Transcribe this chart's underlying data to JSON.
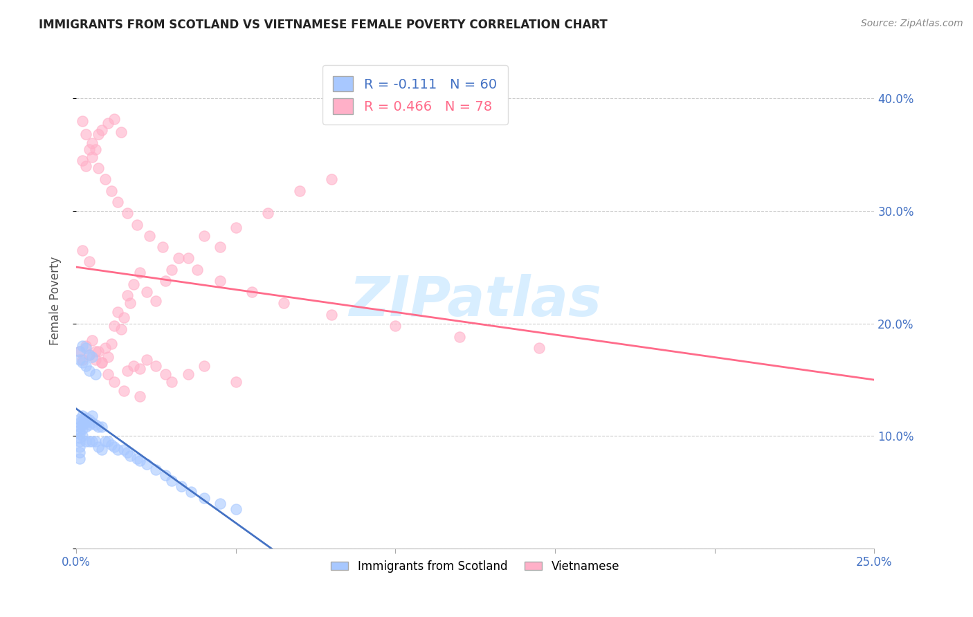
{
  "title": "IMMIGRANTS FROM SCOTLAND VS VIETNAMESE FEMALE POVERTY CORRELATION CHART",
  "source": "Source: ZipAtlas.com",
  "xlabel_scotland": "Immigrants from Scotland",
  "xlabel_vietnamese": "Vietnamese",
  "ylabel": "Female Poverty",
  "xlim": [
    0.0,
    0.25
  ],
  "ylim": [
    0.0,
    0.44
  ],
  "ytick_vals": [
    0.0,
    0.1,
    0.2,
    0.3,
    0.4
  ],
  "xtick_vals": [
    0.0,
    0.05,
    0.1,
    0.15,
    0.2,
    0.25
  ],
  "scotland_color": "#A8C8FF",
  "vietnamese_color": "#FFB0C8",
  "scotland_R": -0.111,
  "scotland_N": 60,
  "vietnamese_R": 0.466,
  "vietnamese_N": 78,
  "title_color": "#222222",
  "source_color": "#888888",
  "tick_color": "#4472C4",
  "grid_color": "#cccccc",
  "watermark_text": "ZIPatlas",
  "watermark_color": "#D8EEFF",
  "line_scotland_color": "#4472C4",
  "line_vietnamese_color": "#FF6B8A",
  "scotland_x": [
    0.001,
    0.001,
    0.001,
    0.001,
    0.001,
    0.001,
    0.001,
    0.001,
    0.001,
    0.001,
    0.002,
    0.002,
    0.002,
    0.002,
    0.002,
    0.003,
    0.003,
    0.003,
    0.003,
    0.004,
    0.004,
    0.004,
    0.005,
    0.005,
    0.005,
    0.006,
    0.006,
    0.007,
    0.007,
    0.008,
    0.008,
    0.009,
    0.01,
    0.011,
    0.012,
    0.013,
    0.015,
    0.016,
    0.017,
    0.019,
    0.02,
    0.022,
    0.025,
    0.028,
    0.03,
    0.033,
    0.036,
    0.04,
    0.045,
    0.05,
    0.001,
    0.001,
    0.002,
    0.002,
    0.003,
    0.003,
    0.004,
    0.004,
    0.005,
    0.006
  ],
  "scotland_y": [
    0.115,
    0.112,
    0.108,
    0.105,
    0.102,
    0.098,
    0.095,
    0.09,
    0.085,
    0.08,
    0.118,
    0.114,
    0.11,
    0.106,
    0.1,
    0.116,
    0.112,
    0.108,
    0.095,
    0.114,
    0.11,
    0.095,
    0.118,
    0.112,
    0.095,
    0.11,
    0.095,
    0.108,
    0.09,
    0.108,
    0.088,
    0.095,
    0.095,
    0.092,
    0.09,
    0.088,
    0.088,
    0.085,
    0.082,
    0.08,
    0.078,
    0.075,
    0.07,
    0.065,
    0.06,
    0.055,
    0.05,
    0.045,
    0.04,
    0.035,
    0.175,
    0.168,
    0.18,
    0.165,
    0.178,
    0.162,
    0.172,
    0.158,
    0.17,
    0.155
  ],
  "vietnamese_x": [
    0.001,
    0.002,
    0.003,
    0.004,
    0.005,
    0.006,
    0.007,
    0.008,
    0.009,
    0.01,
    0.011,
    0.012,
    0.013,
    0.014,
    0.015,
    0.016,
    0.017,
    0.018,
    0.02,
    0.022,
    0.025,
    0.028,
    0.03,
    0.035,
    0.04,
    0.045,
    0.05,
    0.06,
    0.07,
    0.08,
    0.002,
    0.003,
    0.004,
    0.005,
    0.006,
    0.007,
    0.008,
    0.01,
    0.012,
    0.014,
    0.016,
    0.018,
    0.02,
    0.022,
    0.025,
    0.028,
    0.03,
    0.035,
    0.04,
    0.05,
    0.002,
    0.003,
    0.005,
    0.007,
    0.009,
    0.011,
    0.013,
    0.016,
    0.019,
    0.023,
    0.027,
    0.032,
    0.038,
    0.045,
    0.055,
    0.065,
    0.08,
    0.1,
    0.12,
    0.145,
    0.002,
    0.004,
    0.006,
    0.008,
    0.01,
    0.012,
    0.015,
    0.02
  ],
  "vietnamese_y": [
    0.175,
    0.168,
    0.18,
    0.172,
    0.185,
    0.168,
    0.175,
    0.165,
    0.178,
    0.17,
    0.182,
    0.198,
    0.21,
    0.195,
    0.205,
    0.225,
    0.218,
    0.235,
    0.245,
    0.228,
    0.22,
    0.238,
    0.248,
    0.258,
    0.278,
    0.268,
    0.285,
    0.298,
    0.318,
    0.328,
    0.345,
    0.34,
    0.355,
    0.36,
    0.355,
    0.368,
    0.372,
    0.378,
    0.382,
    0.37,
    0.158,
    0.162,
    0.16,
    0.168,
    0.162,
    0.155,
    0.148,
    0.155,
    0.162,
    0.148,
    0.38,
    0.368,
    0.348,
    0.338,
    0.328,
    0.318,
    0.308,
    0.298,
    0.288,
    0.278,
    0.268,
    0.258,
    0.248,
    0.238,
    0.228,
    0.218,
    0.208,
    0.198,
    0.188,
    0.178,
    0.265,
    0.255,
    0.175,
    0.165,
    0.155,
    0.148,
    0.14,
    0.135
  ]
}
